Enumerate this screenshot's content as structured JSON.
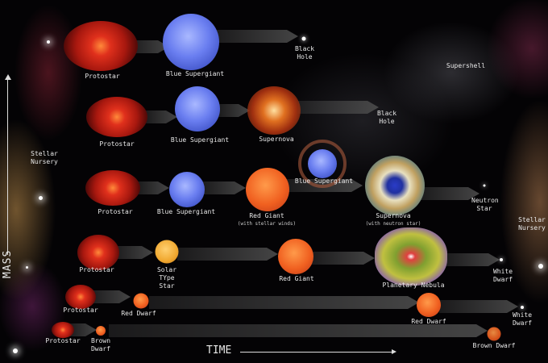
{
  "axes": {
    "mass": "MASS",
    "time": "TIME"
  },
  "regions": {
    "stellar_nursery_left": "Stellar Nursery",
    "stellar_nursery_right": "Stellar Nursery",
    "supershell": "Supershell"
  },
  "rows": [
    {
      "stages": [
        "Protostar",
        "Blue Supergiant",
        "Black Hole"
      ]
    },
    {
      "stages": [
        "Protostar",
        "Blue Supergiant",
        "Supernova",
        "Black Hole"
      ]
    },
    {
      "stages": [
        "Protostar",
        "Blue Supergiant",
        "Red Giant",
        "Blue Supergiant",
        "Supernova",
        "Neutron Star"
      ],
      "notes": {
        "red_giant": "(with stellar winds)",
        "supernova": "(with neutron star)"
      }
    },
    {
      "stages": [
        "Protostar",
        "Solar TYpe Star",
        "Red Giant",
        "Planetary Nebula",
        "White Dwarf"
      ]
    },
    {
      "stages": [
        "Protostar",
        "Red Dwarf",
        "Red Dwarf",
        "White Dwarf"
      ]
    },
    {
      "stages": [
        "Protostar",
        "Brown Dwarf",
        "Brown Dwarf"
      ]
    }
  ]
}
